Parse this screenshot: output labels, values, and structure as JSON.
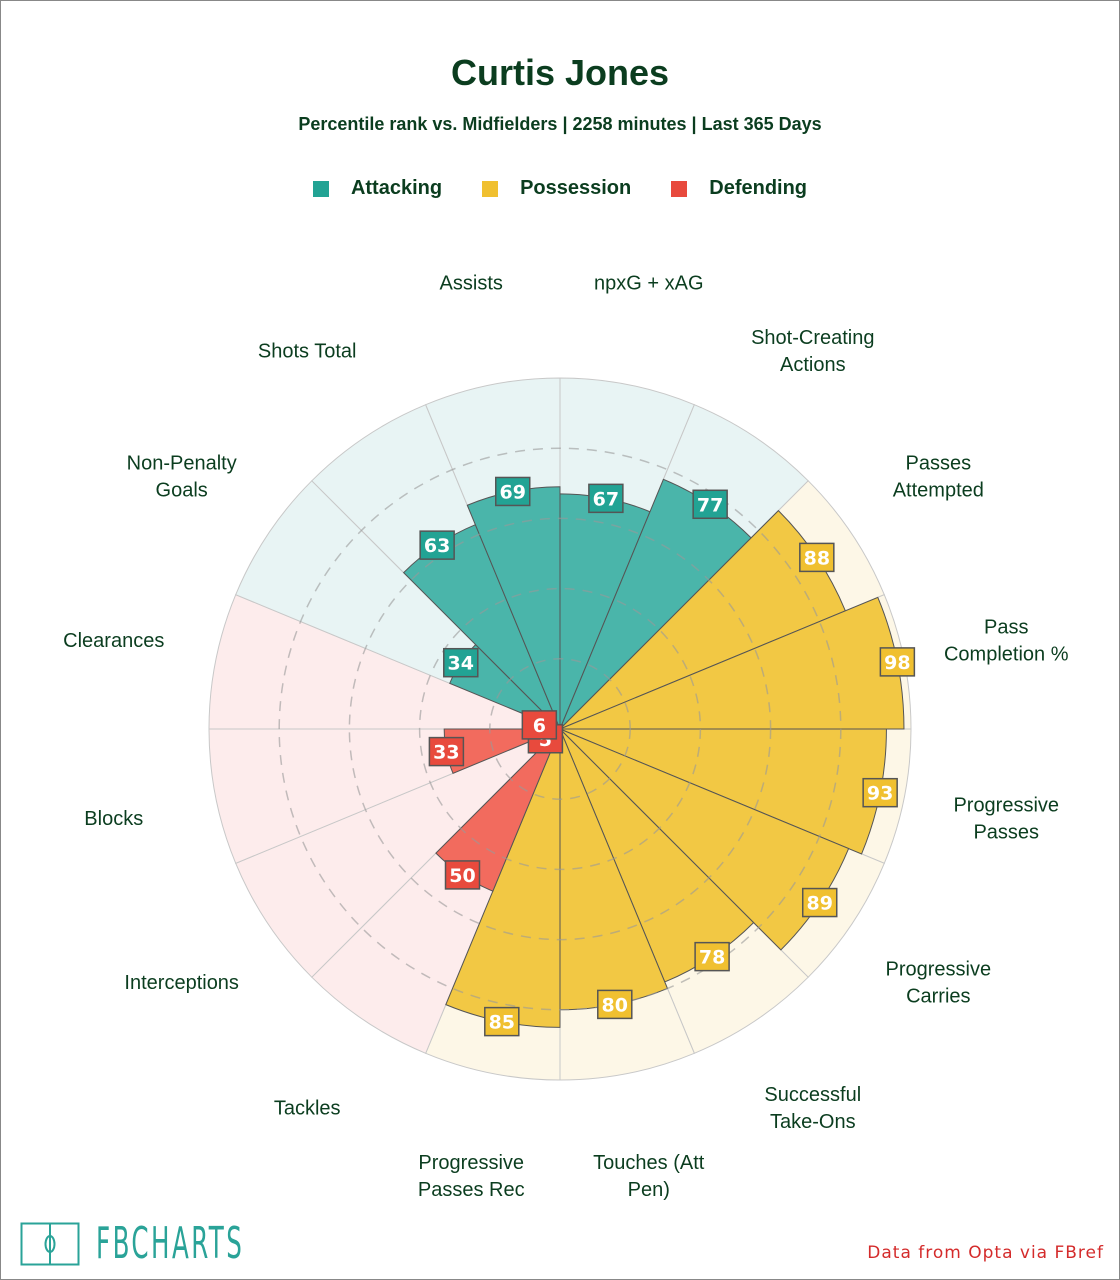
{
  "title": "Curtis Jones",
  "subtitle": "Percentile rank vs. Midfielders | 2258 minutes | Last 365 Days",
  "legend": [
    {
      "label": "Attacking",
      "color": "#22a394"
    },
    {
      "label": "Possession",
      "color": "#f0c030"
    },
    {
      "label": "Defending",
      "color": "#e84a3d"
    }
  ],
  "chart_data": {
    "type": "pizza",
    "title": "Curtis Jones",
    "max": 100,
    "gridlines": [
      20,
      40,
      60,
      80
    ],
    "categories": {
      "Attacking": {
        "fill": "#4ab5aa",
        "box": "#22a394",
        "bg": "#e8f4f4"
      },
      "Possession": {
        "fill": "#f2c844",
        "box": "#f0c030",
        "bg": "#fdf7e7"
      },
      "Defending": {
        "fill": "#f26b5e",
        "box": "#e84a3d",
        "bg": "#fdecec"
      }
    },
    "slices": [
      {
        "label": "npxG + xAG",
        "value": 67,
        "category": "Attacking"
      },
      {
        "label": "Shot-Creating Actions",
        "value": 77,
        "category": "Attacking"
      },
      {
        "label": "Passes Attempted",
        "value": 88,
        "category": "Possession"
      },
      {
        "label": "Pass Completion %",
        "value": 98,
        "category": "Possession"
      },
      {
        "label": "Progressive Passes",
        "value": 93,
        "category": "Possession"
      },
      {
        "label": "Progressive Carries",
        "value": 89,
        "category": "Possession"
      },
      {
        "label": "Successful Take-Ons",
        "value": 78,
        "category": "Possession"
      },
      {
        "label": "Touches (Att Pen)",
        "value": 80,
        "category": "Possession"
      },
      {
        "label": "Progressive Passes Rec",
        "value": 85,
        "category": "Possession"
      },
      {
        "label": "Tackles",
        "value": 50,
        "category": "Defending"
      },
      {
        "label": "Interceptions",
        "value": 5,
        "category": "Defending"
      },
      {
        "label": "Blocks",
        "value": 33,
        "category": "Defending"
      },
      {
        "label": "Clearances",
        "value": 6,
        "category": "Defending"
      },
      {
        "label": "Non-Penalty Goals",
        "value": 34,
        "category": "Attacking"
      },
      {
        "label": "Shots Total",
        "value": 63,
        "category": "Attacking"
      },
      {
        "label": "Assists",
        "value": 69,
        "category": "Attacking"
      }
    ]
  },
  "label_lines": [
    [
      "npxG + xAG"
    ],
    [
      "Shot-Creating",
      "Actions"
    ],
    [
      "Passes",
      "Attempted"
    ],
    [
      "Pass",
      "Completion %"
    ],
    [
      "Progressive",
      "Passes"
    ],
    [
      "Progressive",
      "Carries"
    ],
    [
      "Successful",
      "Take-Ons"
    ],
    [
      "Touches (Att",
      "Pen)"
    ],
    [
      "Progressive",
      "Passes Rec"
    ],
    [
      "Tackles"
    ],
    [
      "Interceptions"
    ],
    [
      "Blocks"
    ],
    [
      "Clearances"
    ],
    [
      "Non-Penalty",
      "Goals"
    ],
    [
      "Shots Total"
    ],
    [
      "Assists"
    ]
  ],
  "footer": {
    "logo": "FBCHARTS",
    "credit": "Data from Opta via FBref"
  }
}
